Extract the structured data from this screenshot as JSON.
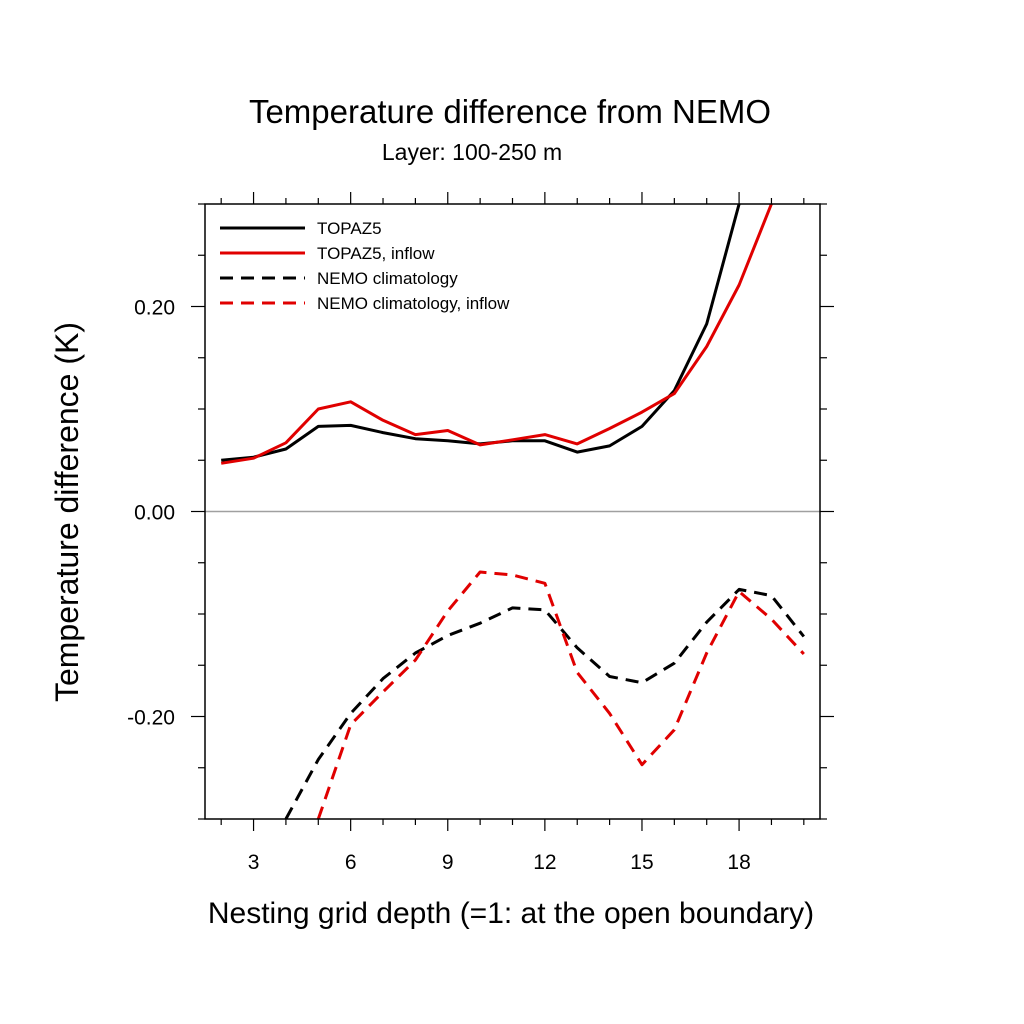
{
  "chart_data": {
    "type": "line",
    "title": "Temperature difference from NEMO",
    "subtitle": "Layer: 100-250 m",
    "xlabel": "Nesting grid depth (=1: at the open boundary)",
    "ylabel": "Temperature difference (K)",
    "xlim": [
      1.5,
      20.5
    ],
    "ylim": [
      -0.3,
      0.3
    ],
    "x_ticks": [
      3,
      6,
      9,
      12,
      15,
      18
    ],
    "x_tick_labels": [
      "3",
      "6",
      "9",
      "12",
      "15",
      "18"
    ],
    "y_ticks": [
      -0.2,
      0.0,
      0.2
    ],
    "y_tick_labels": [
      "-0.20",
      "0.00",
      "0.20"
    ],
    "zero_line": true,
    "grid": false,
    "legend_position": "top-left",
    "x": [
      2,
      3,
      4,
      5,
      6,
      7,
      8,
      9,
      10,
      11,
      12,
      13,
      14,
      15,
      16,
      17,
      18,
      19,
      20
    ],
    "series": [
      {
        "name": "TOPAZ5",
        "color": "#000000",
        "dash": "solid",
        "values": [
          0.05,
          0.053,
          0.061,
          0.083,
          0.084,
          0.077,
          0.071,
          0.069,
          0.066,
          0.069,
          0.069,
          0.058,
          0.064,
          0.083,
          0.118,
          0.183,
          0.3,
          null,
          null
        ]
      },
      {
        "name": "TOPAZ5, inflow",
        "color": "#e00000",
        "dash": "solid",
        "values": [
          0.047,
          0.052,
          0.067,
          0.1,
          0.107,
          0.089,
          0.075,
          0.079,
          0.065,
          0.07,
          0.075,
          0.066,
          0.081,
          0.097,
          0.115,
          0.161,
          0.221,
          0.3,
          null
        ]
      },
      {
        "name": "NEMO climatology",
        "color": "#000000",
        "dash": "dashed",
        "values": [
          null,
          null,
          -0.3,
          -0.242,
          -0.197,
          -0.163,
          -0.138,
          -0.121,
          -0.109,
          -0.094,
          -0.096,
          -0.133,
          -0.161,
          -0.167,
          -0.148,
          -0.108,
          -0.076,
          -0.082,
          -0.122
        ]
      },
      {
        "name": "NEMO climatology, inflow",
        "color": "#e00000",
        "dash": "dashed",
        "values": [
          null,
          null,
          null,
          -0.3,
          -0.208,
          -0.176,
          -0.145,
          -0.097,
          -0.059,
          -0.062,
          -0.07,
          -0.157,
          -0.197,
          -0.247,
          -0.213,
          -0.138,
          -0.078,
          -0.105,
          -0.139
        ]
      }
    ]
  }
}
